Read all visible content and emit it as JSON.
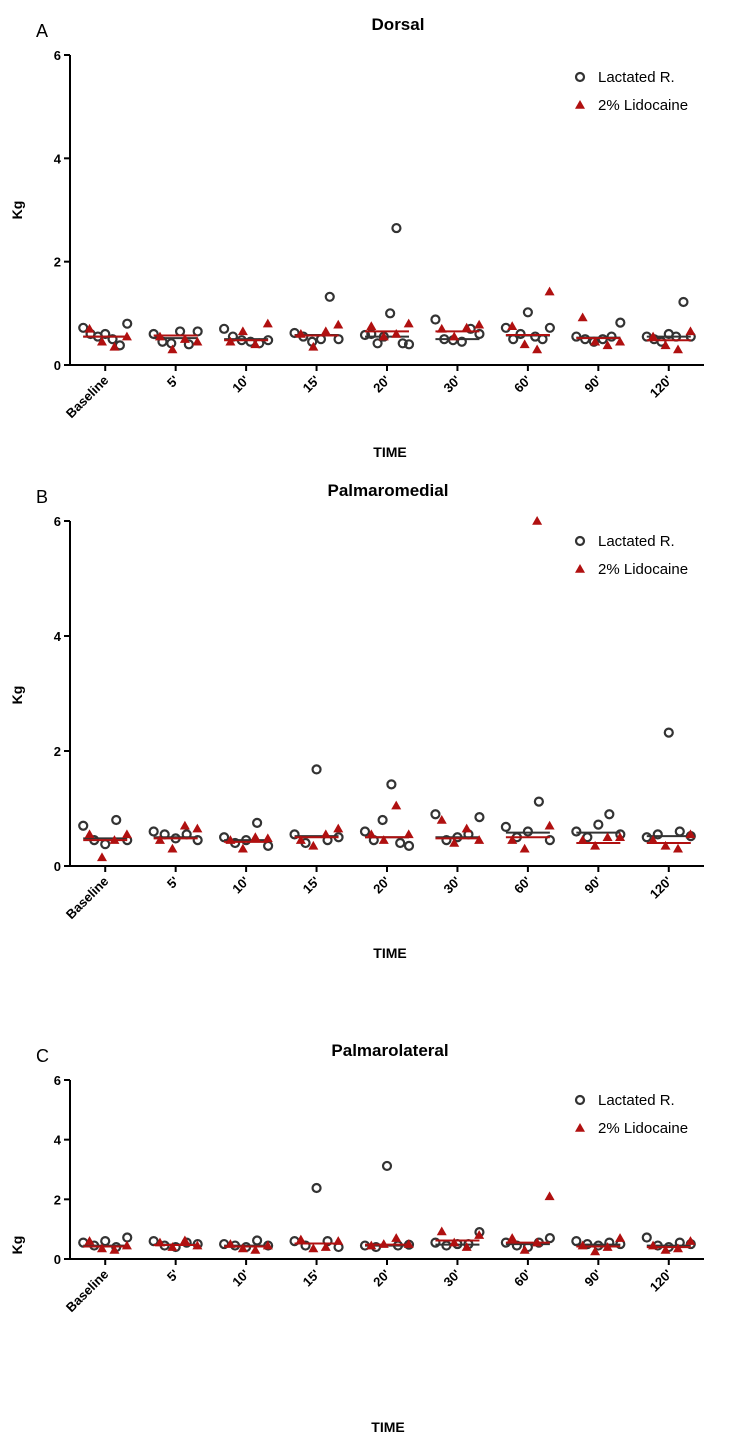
{
  "colors": {
    "lactated": "#333333",
    "lidocaine": "#b01010",
    "axis": "#000000"
  },
  "chart_data": [
    {
      "type": "scatter",
      "panel_letter": "A",
      "title": "Dorsal",
      "xlabel": "TIME",
      "ylabel": "Kg",
      "ylim": [
        0,
        6
      ],
      "yticks": [
        "0",
        "2",
        "4",
        "6"
      ],
      "categories": [
        "Baseline",
        "5'",
        "10'",
        "15'",
        "20'",
        "30'",
        "60'",
        "90'",
        "120'"
      ],
      "legend": [
        "Lactated R.",
        "2% Lidocaine"
      ],
      "legend_position": "top-right",
      "series": [
        {
          "name": "Lactated R.",
          "marker": "open-circle",
          "means": [
            0.55,
            0.52,
            0.5,
            0.58,
            0.55,
            0.5,
            0.57,
            0.53,
            0.55
          ],
          "points": [
            [
              0.72,
              0.6,
              0.55,
              0.6,
              0.5,
              0.38,
              0.8
            ],
            [
              0.6,
              0.45,
              0.42,
              0.65,
              0.4,
              0.65
            ],
            [
              0.7,
              0.55,
              0.48,
              0.45,
              0.42,
              0.48
            ],
            [
              0.62,
              0.55,
              0.45,
              0.5,
              1.32,
              0.5
            ],
            [
              0.58,
              0.6,
              0.42,
              0.55,
              1.0,
              2.65,
              0.42,
              0.4
            ],
            [
              0.88,
              0.5,
              0.48,
              0.45,
              0.7,
              0.6
            ],
            [
              0.72,
              0.5,
              0.6,
              1.02,
              0.55,
              0.5,
              0.72
            ],
            [
              0.55,
              0.5,
              0.45,
              0.5,
              0.55,
              0.82
            ],
            [
              0.55,
              0.5,
              0.45,
              0.6,
              0.55,
              1.22,
              0.55
            ]
          ]
        },
        {
          "name": "2% Lidocaine",
          "marker": "filled-triangle",
          "means": [
            0.55,
            0.57,
            0.48,
            0.57,
            0.65,
            0.65,
            0.58,
            0.52,
            0.48
          ],
          "points": [
            [
              0.7,
              0.45,
              0.35,
              0.55
            ],
            [
              0.55,
              0.3,
              0.5,
              0.45
            ],
            [
              0.45,
              0.65,
              0.4,
              0.8
            ],
            [
              0.6,
              0.35,
              0.65,
              0.78
            ],
            [
              0.75,
              0.55,
              0.6,
              0.8
            ],
            [
              0.7,
              0.55,
              0.72,
              0.78
            ],
            [
              0.75,
              0.4,
              0.3,
              1.42
            ],
            [
              0.92,
              0.45,
              0.38,
              0.45
            ],
            [
              0.55,
              0.38,
              0.3,
              0.65
            ]
          ]
        }
      ]
    },
    {
      "type": "scatter",
      "panel_letter": "B",
      "title": "Palmaromedial",
      "xlabel": "TIME",
      "ylabel": "Kg",
      "ylim": [
        0,
        6
      ],
      "yticks": [
        "0",
        "2",
        "4",
        "6"
      ],
      "categories": [
        "Baseline",
        "5'",
        "10'",
        "15'",
        "20'",
        "30'",
        "60'",
        "90'",
        "120'"
      ],
      "legend": [
        "Lactated R.",
        "2% Lidocaine"
      ],
      "legend_position": "top-right",
      "series": [
        {
          "name": "Lactated R.",
          "marker": "open-circle",
          "means": [
            0.48,
            0.5,
            0.45,
            0.52,
            0.5,
            0.5,
            0.58,
            0.58,
            0.52
          ],
          "points": [
            [
              0.7,
              0.45,
              0.38,
              0.8,
              0.45
            ],
            [
              0.6,
              0.55,
              0.48,
              0.55,
              0.45
            ],
            [
              0.5,
              0.4,
              0.45,
              0.75,
              0.35
            ],
            [
              0.55,
              0.4,
              1.68,
              0.45,
              0.5
            ],
            [
              0.6,
              0.45,
              0.8,
              1.42,
              0.4,
              0.35
            ],
            [
              0.9,
              0.45,
              0.5,
              0.55,
              0.85
            ],
            [
              0.68,
              0.5,
              0.6,
              1.12,
              0.45
            ],
            [
              0.6,
              0.5,
              0.72,
              0.9,
              0.55
            ],
            [
              0.5,
              0.55,
              2.32,
              0.6,
              0.52
            ]
          ]
        },
        {
          "name": "2% Lidocaine",
          "marker": "filled-triangle",
          "means": [
            0.45,
            0.48,
            0.42,
            0.5,
            0.5,
            0.48,
            0.5,
            0.4,
            0.4
          ],
          "points": [
            [
              0.55,
              0.15,
              0.45,
              0.55
            ],
            [
              0.45,
              0.3,
              0.7,
              0.65
            ],
            [
              0.45,
              0.3,
              0.5,
              0.48
            ],
            [
              0.45,
              0.35,
              0.55,
              0.65
            ],
            [
              0.55,
              0.45,
              1.05,
              0.55
            ],
            [
              0.8,
              0.4,
              0.65,
              0.45
            ],
            [
              0.45,
              0.3,
              6.0,
              0.7
            ],
            [
              0.45,
              0.35,
              0.5,
              0.5
            ],
            [
              0.45,
              0.35,
              0.3,
              0.55
            ]
          ]
        }
      ]
    },
    {
      "type": "scatter",
      "panel_letter": "C",
      "title": "Palmarolateral",
      "xlabel": "TIME",
      "ylabel": "Kg",
      "ylim": [
        0,
        6
      ],
      "yticks": [
        "0",
        "2",
        "4",
        "6"
      ],
      "categories": [
        "Baseline",
        "5'",
        "10'",
        "15'",
        "20'",
        "30'",
        "60'",
        "90'",
        "120'"
      ],
      "legend": [
        "Lactated R.",
        "2% Lidocaine"
      ],
      "legend_position": "top-right",
      "series": [
        {
          "name": "Lactated R.",
          "marker": "open-circle",
          "means": [
            0.45,
            0.48,
            0.45,
            0.52,
            0.45,
            0.48,
            0.5,
            0.48,
            0.45
          ],
          "points": [
            [
              0.55,
              0.45,
              0.6,
              0.4,
              0.72
            ],
            [
              0.6,
              0.45,
              0.4,
              0.55,
              0.5
            ],
            [
              0.5,
              0.45,
              0.4,
              0.62,
              0.45
            ],
            [
              0.6,
              0.45,
              2.38,
              0.6,
              0.4
            ],
            [
              0.45,
              0.4,
              3.12,
              0.45,
              0.48
            ],
            [
              0.55,
              0.45,
              0.5,
              0.5,
              0.9
            ],
            [
              0.55,
              0.45,
              0.4,
              0.55,
              0.7
            ],
            [
              0.6,
              0.5,
              0.45,
              0.55,
              0.5
            ],
            [
              0.72,
              0.45,
              0.4,
              0.55,
              0.5
            ]
          ]
        },
        {
          "name": "2% Lidocaine",
          "marker": "filled-triangle",
          "means": [
            0.42,
            0.47,
            0.42,
            0.52,
            0.48,
            0.62,
            0.55,
            0.42,
            0.4
          ],
          "points": [
            [
              0.6,
              0.35,
              0.3,
              0.45
            ],
            [
              0.55,
              0.4,
              0.62,
              0.45
            ],
            [
              0.5,
              0.35,
              0.3,
              0.45
            ],
            [
              0.65,
              0.35,
              0.4,
              0.6
            ],
            [
              0.45,
              0.5,
              0.7,
              0.5
            ],
            [
              0.92,
              0.55,
              0.4,
              0.8
            ],
            [
              0.7,
              0.3,
              0.55,
              2.1
            ],
            [
              0.45,
              0.25,
              0.4,
              0.7
            ],
            [
              0.45,
              0.3,
              0.35,
              0.6
            ]
          ]
        }
      ]
    }
  ]
}
